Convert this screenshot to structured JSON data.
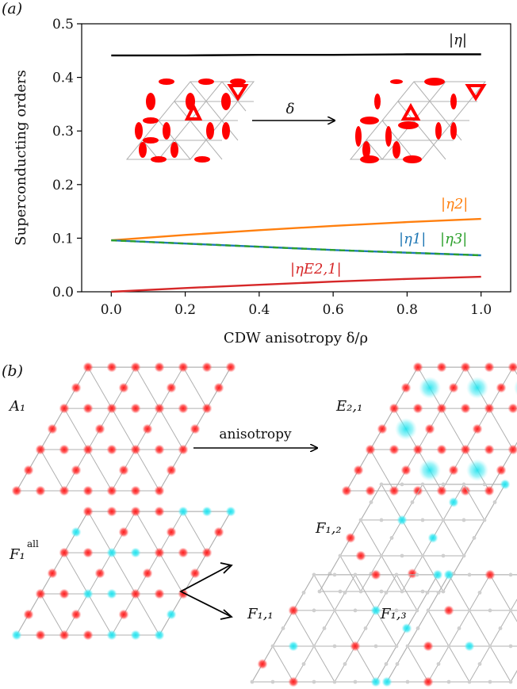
{
  "panel_a_label": "(a)",
  "panel_b_label": "(b)",
  "chart_data": {
    "type": "line",
    "title": "",
    "xlabel": "CDW anisotropy δ/ρ",
    "ylabel": "Superconducting orders",
    "xlim": [
      -0.08,
      1.08
    ],
    "ylim": [
      0.0,
      0.5
    ],
    "xticks": [
      0.0,
      0.2,
      0.4,
      0.6,
      0.8,
      1.0
    ],
    "xtick_labels": [
      "0.0",
      "0.2",
      "0.4",
      "0.6",
      "0.8",
      "1.0"
    ],
    "yticks": [
      0.0,
      0.1,
      0.2,
      0.3,
      0.4,
      0.5
    ],
    "ytick_labels": [
      "0.0",
      "0.1",
      "0.2",
      "0.3",
      "0.4",
      "0.5"
    ],
    "grid": false,
    "x": [
      0.0,
      0.2,
      0.4,
      0.6,
      0.8,
      1.0
    ],
    "series": [
      {
        "name": "|η|",
        "color": "#000000",
        "values": [
          0.441,
          0.441,
          0.442,
          0.442,
          0.443,
          0.443
        ]
      },
      {
        "name": "|η2|",
        "color": "#ff7f0e",
        "values": [
          0.096,
          0.106,
          0.115,
          0.123,
          0.13,
          0.136
        ]
      },
      {
        "name": "|η1|",
        "color": "#1f77b4",
        "values": [
          0.096,
          0.09,
          0.084,
          0.078,
          0.073,
          0.068
        ]
      },
      {
        "name": "|η3|",
        "color": "#2ca02c",
        "values": [
          0.096,
          0.09,
          0.084,
          0.078,
          0.073,
          0.068
        ]
      },
      {
        "name": "|ηE2,1|",
        "color": "#d62728",
        "values": [
          0.0,
          0.007,
          0.013,
          0.019,
          0.024,
          0.028
        ]
      }
    ],
    "inset_annotation": "δ"
  },
  "panel_b": {
    "arrow_label": "anisotropy",
    "lattices": [
      {
        "id": "A1",
        "label": "A₁"
      },
      {
        "id": "E21",
        "label": "E₂,₁"
      },
      {
        "id": "F1all",
        "label": "F₁",
        "superscript": "all"
      },
      {
        "id": "F12",
        "label": "F₁,₂"
      },
      {
        "id": "F11",
        "label": "F₁,₁"
      },
      {
        "id": "F13",
        "label": "F₁,₃"
      }
    ]
  },
  "colors": {
    "red": "#ff2a2a",
    "cyan": "#2de6f0",
    "edge": "#b0b0b0"
  }
}
